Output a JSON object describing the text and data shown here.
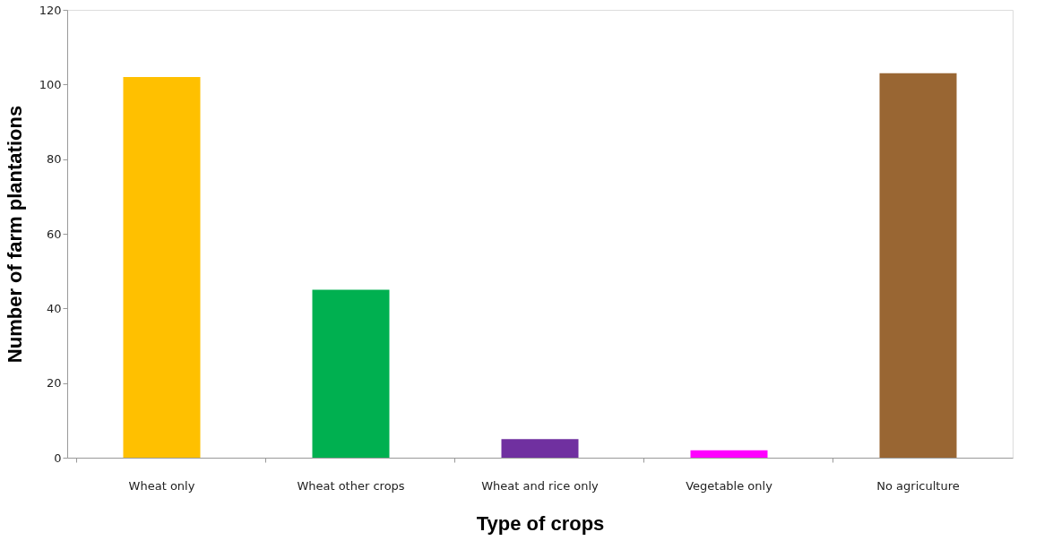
{
  "chart_data": {
    "type": "bar",
    "xlabel": "Type of crops",
    "ylabel": "Number of farm plantations",
    "categories": [
      "Wheat only",
      "Wheat other crops",
      "Wheat and rice only",
      "Vegetable only",
      "No agriculture"
    ],
    "values": [
      102,
      45,
      5,
      2,
      103
    ],
    "colors": [
      "#ffc000",
      "#00b050",
      "#7030a0",
      "#ff00ff",
      "#996633"
    ],
    "ylim": [
      0,
      120
    ],
    "yticks": [
      0,
      20,
      40,
      60,
      80,
      100,
      120
    ],
    "grid": false,
    "legend": false
  }
}
